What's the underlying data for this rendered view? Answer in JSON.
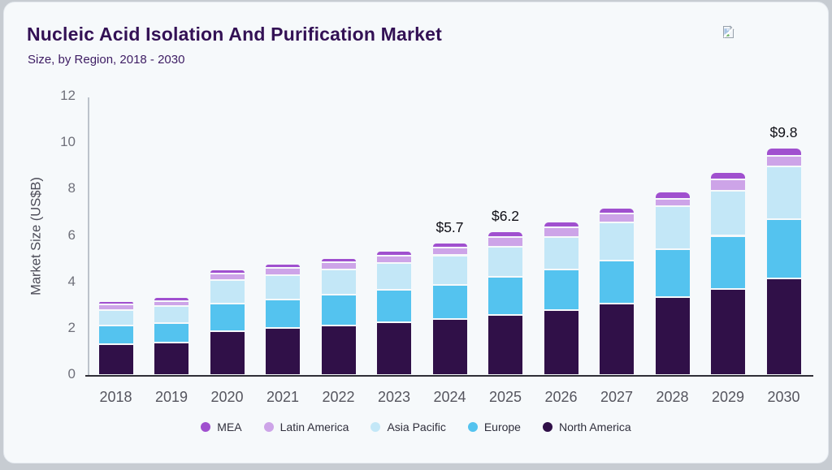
{
  "header": {
    "title": "Nucleic Acid Isolation And Purification Market",
    "subtitle": "Size, by Region, 2018 - 2030",
    "title_color": "#331155",
    "subtitle_color": "#3d1c63"
  },
  "icons": {
    "broken_image": "broken-image-icon"
  },
  "chart_data": {
    "type": "bar",
    "stacked": true,
    "title": "Nucleic Acid Isolation And Purification Market Size, by Region, 2018 - 2030",
    "xlabel": "",
    "ylabel": "Market Size (US$B)",
    "ylim": [
      0,
      12
    ],
    "y_ticks": [
      0,
      2,
      4,
      6,
      8,
      10,
      12
    ],
    "grid": false,
    "legend_position": "bottom",
    "categories": [
      "2018",
      "2019",
      "2020",
      "2021",
      "2022",
      "2023",
      "2024",
      "2025",
      "2026",
      "2027",
      "2028",
      "2029",
      "2030"
    ],
    "series": [
      {
        "name": "MEA",
        "color": "#a050cf",
        "values": [
          0.17,
          0.17,
          0.18,
          0.18,
          0.19,
          0.19,
          0.2,
          0.24,
          0.23,
          0.24,
          0.3,
          0.32,
          0.37
        ]
      },
      {
        "name": "Latin America",
        "color": "#cda4e8",
        "values": [
          0.22,
          0.22,
          0.28,
          0.3,
          0.31,
          0.32,
          0.34,
          0.42,
          0.43,
          0.38,
          0.34,
          0.5,
          0.45
        ]
      },
      {
        "name": "Asia Pacific",
        "color": "#c3e7f7",
        "values": [
          0.68,
          0.72,
          1.0,
          1.05,
          1.1,
          1.18,
          1.26,
          1.32,
          1.38,
          1.64,
          1.84,
          1.93,
          2.28
        ]
      },
      {
        "name": "Europe",
        "color": "#54c3ef",
        "values": [
          0.8,
          0.84,
          1.19,
          1.25,
          1.33,
          1.4,
          1.5,
          1.62,
          1.76,
          1.86,
          2.06,
          2.28,
          2.52
        ]
      },
      {
        "name": "North America",
        "color": "#301048",
        "values": [
          1.33,
          1.4,
          1.9,
          2.02,
          2.12,
          2.26,
          2.4,
          2.6,
          2.8,
          3.08,
          3.36,
          3.72,
          4.18
        ]
      }
    ],
    "totals": [
      3.2,
      3.35,
      4.55,
      4.8,
      5.05,
      5.35,
      5.7,
      6.2,
      6.6,
      7.2,
      7.9,
      8.75,
      9.8
    ],
    "annotations": [
      {
        "category": "2024",
        "text": "$5.7"
      },
      {
        "category": "2025",
        "text": "$6.2"
      },
      {
        "category": "2030",
        "text": "$9.8"
      }
    ]
  }
}
